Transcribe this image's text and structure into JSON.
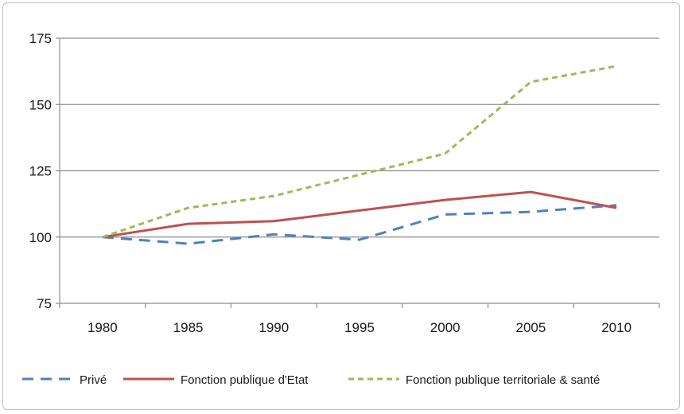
{
  "chart_data": {
    "type": "line",
    "title": "",
    "xlabel": "",
    "ylabel": "",
    "x": [
      1980,
      1985,
      1990,
      1995,
      2000,
      2005,
      2010
    ],
    "categories": [
      "1980",
      "1985",
      "1990",
      "1995",
      "2000",
      "2005",
      "2010"
    ],
    "ylim": [
      75,
      175
    ],
    "yticks": [
      "75",
      "100",
      "125",
      "150",
      "175"
    ],
    "grid": true,
    "legend_position": "bottom",
    "series": [
      {
        "name": "Privé",
        "values": [
          100,
          97.5,
          101,
          99,
          108.5,
          109.5,
          112
        ],
        "color": "#4f81bd",
        "style": "dashed"
      },
      {
        "name": "Fonction publique d'Etat",
        "values": [
          100,
          105,
          106,
          110,
          114,
          117,
          111
        ],
        "color": "#c0504d",
        "style": "solid"
      },
      {
        "name": "Fonction publique territoriale & santé",
        "values": [
          100,
          111,
          115.5,
          123.5,
          131.5,
          158.5,
          164.5
        ],
        "color": "#9bbb59",
        "style": "dotted-dash"
      }
    ]
  }
}
